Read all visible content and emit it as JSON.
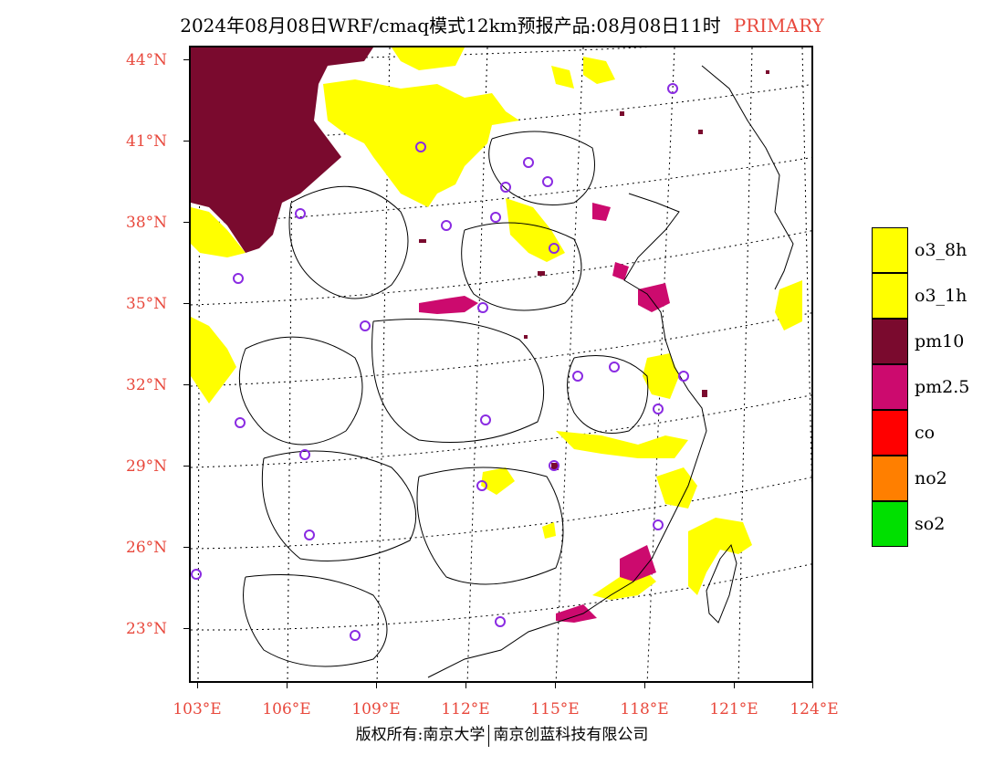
{
  "title": {
    "main": "2024年08月08日WRF/cmaq模式12km预报产品:08月08日11时",
    "tag": "PRIMARY",
    "tag_color": "#e8483c"
  },
  "axes": {
    "latitude_labels": [
      "44°N",
      "41°N",
      "38°N",
      "35°N",
      "32°N",
      "29°N",
      "26°N",
      "23°N"
    ],
    "longitude_labels": [
      "103°E",
      "106°E",
      "109°E",
      "112°E",
      "115°E",
      "118°E",
      "121°E",
      "124°E"
    ],
    "label_color": "#e8483c"
  },
  "legend": {
    "items": [
      {
        "label": "o3_8h",
        "color": "#ffff00"
      },
      {
        "label": "o3_1h",
        "color": "#ffff00"
      },
      {
        "label": "pm10",
        "color": "#7a0a2e"
      },
      {
        "label": "pm2.5",
        "color": "#cc0a6e"
      },
      {
        "label": "co",
        "color": "#ff0000"
      },
      {
        "label": "no2",
        "color": "#ff7f00"
      },
      {
        "label": "so2",
        "color": "#00e000"
      }
    ]
  },
  "footer": {
    "left": "版权所有:南京大学",
    "right": "南京创蓝科技有限公司"
  },
  "map": {
    "station_marker_color": "#8a2be2",
    "gridline_style": "dotted"
  }
}
